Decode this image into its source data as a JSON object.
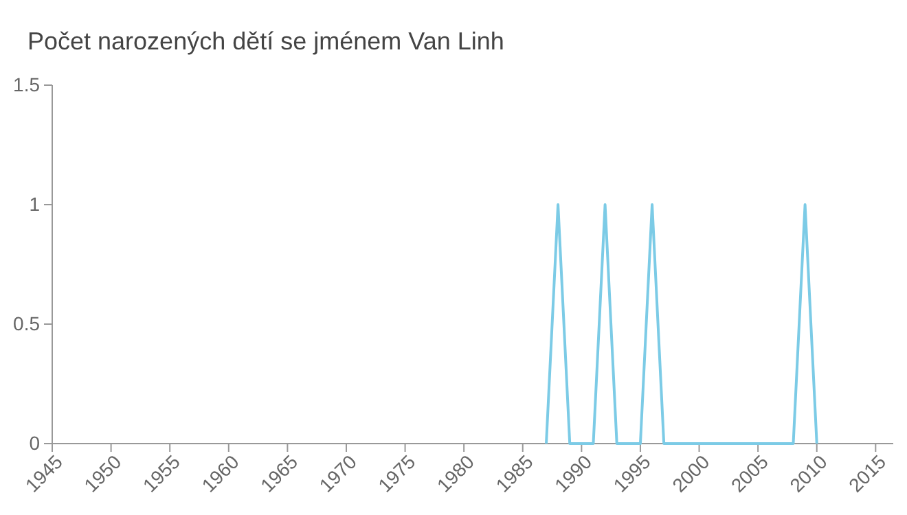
{
  "chart_data": {
    "type": "line",
    "title": "Počet narozených dětí se jménem Van Linh",
    "x": [
      1987,
      1988,
      1989,
      1990,
      1991,
      1992,
      1993,
      1994,
      1995,
      1996,
      1997,
      1998,
      1999,
      2000,
      2001,
      2002,
      2003,
      2004,
      2005,
      2006,
      2007,
      2008,
      2009,
      2010
    ],
    "series": [
      {
        "color": "#7ccbe6",
        "values": [
          0,
          1,
          0,
          0,
          0,
          1,
          0,
          0,
          0,
          1,
          0,
          0,
          0,
          0,
          0,
          0,
          0,
          0,
          0,
          0,
          0,
          0,
          1,
          0
        ]
      }
    ],
    "xlim": [
      1945,
      2016.5
    ],
    "xticks": [
      1945,
      1950,
      1955,
      1960,
      1965,
      1970,
      1975,
      1980,
      1985,
      1990,
      1995,
      2000,
      2005,
      2010,
      2015
    ],
    "ylim": [
      0,
      1.5
    ],
    "yticks": [
      0,
      0.5,
      1,
      1.5
    ],
    "grid": false,
    "marker": "none",
    "line_style": "solid"
  }
}
